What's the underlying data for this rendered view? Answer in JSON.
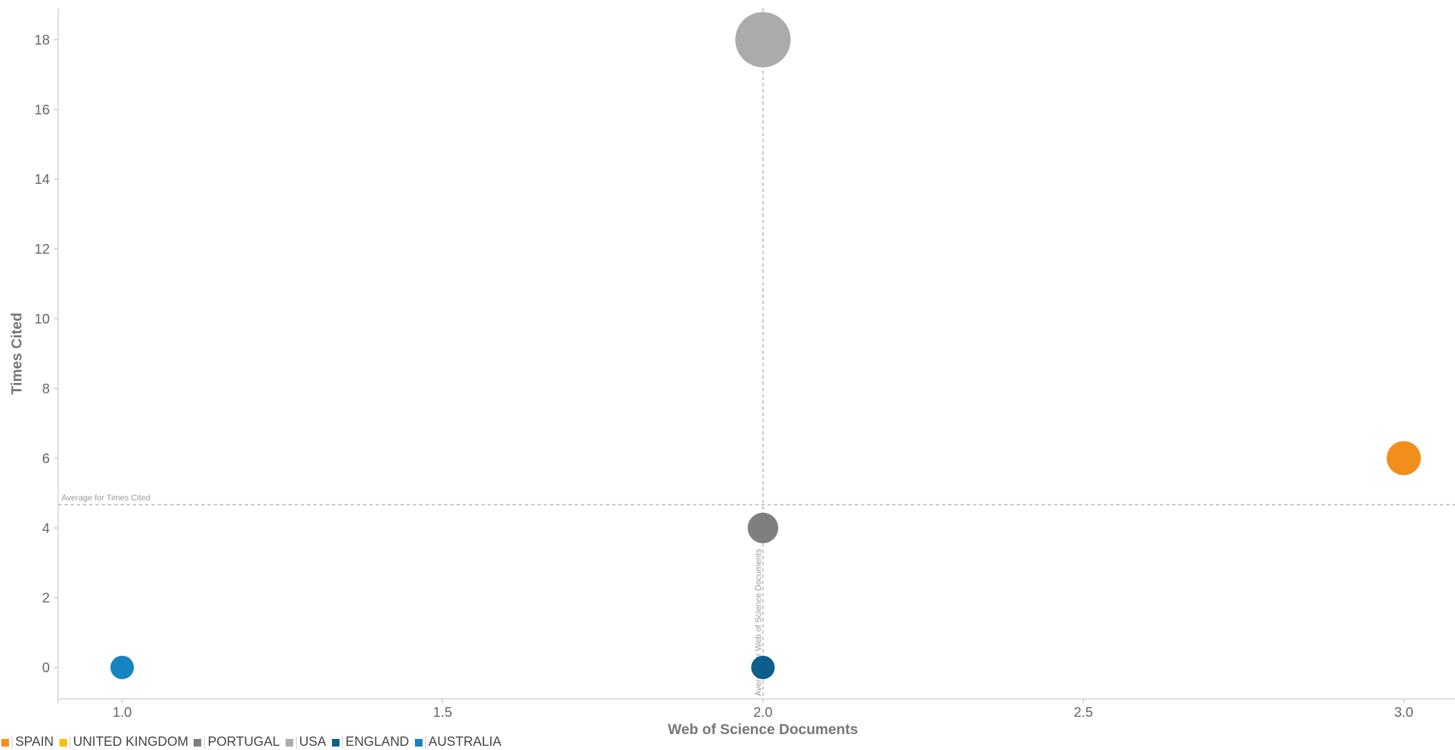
{
  "chart_data": {
    "type": "scatter",
    "xlabel": "Web of Science Documents",
    "ylabel": "Times Cited",
    "xlim": [
      0.9,
      3.08
    ],
    "ylim": [
      -0.9,
      18.9
    ],
    "x_ticks": [
      "1.0",
      "1.5",
      "2.0",
      "2.5",
      "3.0"
    ],
    "y_ticks": [
      "0",
      "2",
      "4",
      "6",
      "8",
      "10",
      "12",
      "14",
      "16",
      "18"
    ],
    "reference_lines": {
      "avg_y": {
        "label": "Average for Times Cited",
        "value": 4.67
      },
      "avg_x": {
        "label": "Average for Web of Science Documents",
        "value": 2.0
      }
    },
    "series": [
      {
        "name": "SPAIN",
        "x": 3.0,
        "y": 6,
        "color": "#f28e1c"
      },
      {
        "name": "UNITED KINGDOM",
        "x": null,
        "y": null,
        "color": "#ffbe0b"
      },
      {
        "name": "PORTUGAL",
        "x": 2.0,
        "y": 4,
        "color": "#7f7f7f"
      },
      {
        "name": "USA",
        "x": 2.0,
        "y": 18,
        "color": "#ababab"
      },
      {
        "name": "ENGLAND",
        "x": 2.0,
        "y": 0,
        "color": "#0b5f8a"
      },
      {
        "name": "AUSTRALIA",
        "x": 1.0,
        "y": 0,
        "color": "#1584c2"
      }
    ],
    "legend_position": "bottom-left",
    "grid": false
  }
}
